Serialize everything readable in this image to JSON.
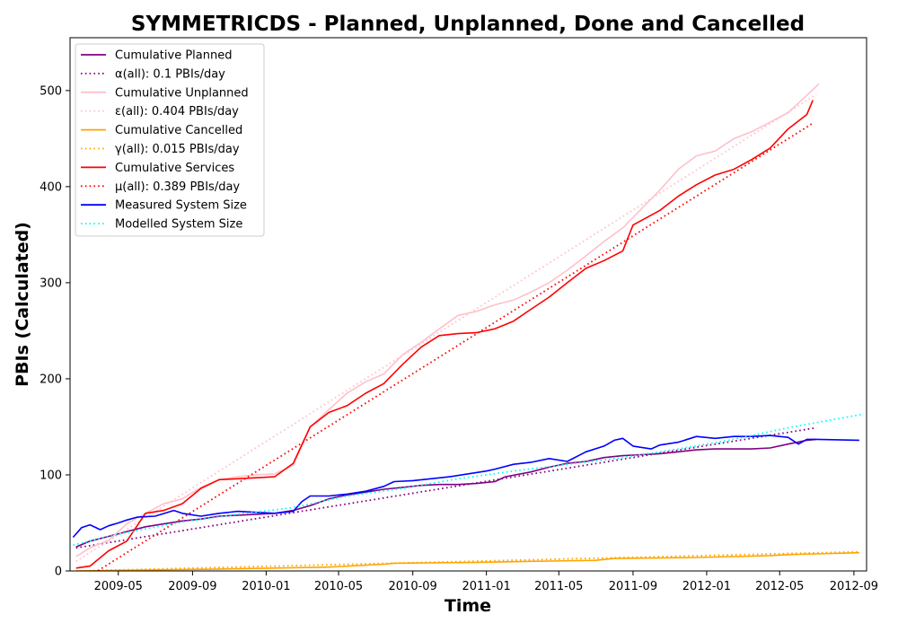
{
  "chart_data": {
    "type": "line",
    "title": "SYMMETRICDS - Planned, Unplanned, Done  and Cancelled",
    "xlabel": "Time",
    "ylabel": "PBIs (Calculated)",
    "x_ticks": [
      "2009-05",
      "2009-09",
      "2010-01",
      "2010-05",
      "2010-09",
      "2011-01",
      "2011-05",
      "2011-09",
      "2012-01",
      "2012-05",
      "2012-09"
    ],
    "y_ticks": [
      0,
      100,
      200,
      300,
      400,
      500
    ],
    "xlim": [
      "2009-02-10",
      "2012-09-22"
    ],
    "ylim": [
      0,
      555
    ],
    "grid": false,
    "legend_position": "top-left",
    "series": [
      {
        "name": "Cumulative Planned",
        "color": "#800080",
        "style": "solid",
        "points": [
          [
            "2009-02-20",
            25
          ],
          [
            "2009-03-15",
            31
          ],
          [
            "2009-04-15",
            36
          ],
          [
            "2009-05-15",
            41
          ],
          [
            "2009-06-15",
            46
          ],
          [
            "2009-07-15",
            49
          ],
          [
            "2009-08-15",
            52
          ],
          [
            "2009-09-15",
            54
          ],
          [
            "2009-10-15",
            57
          ],
          [
            "2009-11-15",
            58
          ],
          [
            "2009-12-15",
            59
          ],
          [
            "2010-01-15",
            60
          ],
          [
            "2010-02-15",
            63
          ],
          [
            "2010-03-15",
            68
          ],
          [
            "2010-04-15",
            75
          ],
          [
            "2010-05-15",
            79
          ],
          [
            "2010-06-15",
            82
          ],
          [
            "2010-07-15",
            85
          ],
          [
            "2010-08-15",
            87
          ],
          [
            "2010-09-15",
            89
          ],
          [
            "2010-10-15",
            90
          ],
          [
            "2010-11-15",
            90
          ],
          [
            "2010-12-15",
            91
          ],
          [
            "2011-01-15",
            93
          ],
          [
            "2011-02-01",
            98
          ],
          [
            "2011-03-15",
            103
          ],
          [
            "2011-04-15",
            108
          ],
          [
            "2011-05-15",
            112
          ],
          [
            "2011-06-15",
            114
          ],
          [
            "2011-07-15",
            118
          ],
          [
            "2011-08-15",
            120
          ],
          [
            "2011-09-15",
            121
          ],
          [
            "2011-10-15",
            122
          ],
          [
            "2011-11-15",
            124
          ],
          [
            "2011-12-15",
            126
          ],
          [
            "2012-01-15",
            127
          ],
          [
            "2012-02-15",
            127
          ],
          [
            "2012-03-15",
            127
          ],
          [
            "2012-04-15",
            128
          ],
          [
            "2012-05-15",
            132
          ],
          [
            "2012-06-15",
            136
          ],
          [
            "2012-07-01",
            137
          ]
        ]
      },
      {
        "name": "α(all): 0.1 PBIs/day",
        "color": "#800080",
        "style": "dotted",
        "points": [
          [
            "2009-02-20",
            24
          ],
          [
            "2012-07-01",
            149
          ]
        ]
      },
      {
        "name": "Cumulative Unplanned",
        "color": "#ffc0cb",
        "style": "solid",
        "points": [
          [
            "2009-02-20",
            15
          ],
          [
            "2009-03-15",
            24
          ],
          [
            "2009-04-15",
            32
          ],
          [
            "2009-05-15",
            49
          ],
          [
            "2009-06-15",
            60
          ],
          [
            "2009-07-15",
            70
          ],
          [
            "2009-08-15",
            75
          ],
          [
            "2009-09-15",
            87
          ],
          [
            "2009-10-15",
            95
          ],
          [
            "2009-11-15",
            98
          ],
          [
            "2009-12-15",
            100
          ],
          [
            "2010-01-15",
            101
          ],
          [
            "2010-02-15",
            110
          ],
          [
            "2010-03-15",
            150
          ],
          [
            "2010-04-15",
            168
          ],
          [
            "2010-05-15",
            185
          ],
          [
            "2010-06-15",
            197
          ],
          [
            "2010-07-15",
            205
          ],
          [
            "2010-08-15",
            225
          ],
          [
            "2010-09-15",
            238
          ],
          [
            "2010-10-15",
            252
          ],
          [
            "2010-11-15",
            266
          ],
          [
            "2010-12-15",
            270
          ],
          [
            "2011-01-15",
            277
          ],
          [
            "2011-02-15",
            282
          ],
          [
            "2011-03-15",
            290
          ],
          [
            "2011-04-15",
            300
          ],
          [
            "2011-05-15",
            313
          ],
          [
            "2011-06-15",
            328
          ],
          [
            "2011-07-15",
            343
          ],
          [
            "2011-08-15",
            357
          ],
          [
            "2011-09-15",
            377
          ],
          [
            "2011-10-15",
            396
          ],
          [
            "2011-11-15",
            418
          ],
          [
            "2011-12-15",
            432
          ],
          [
            "2012-01-15",
            437
          ],
          [
            "2012-02-15",
            450
          ],
          [
            "2012-03-15",
            457
          ],
          [
            "2012-04-15",
            467
          ],
          [
            "2012-05-15",
            477
          ],
          [
            "2012-06-15",
            495
          ],
          [
            "2012-07-05",
            507
          ]
        ]
      },
      {
        "name": "ε(all): 0.404 PBIs/day",
        "color": "#ffc0cb",
        "style": "dotted",
        "points": [
          [
            "2009-02-20",
            10
          ],
          [
            "2012-07-01",
            496
          ]
        ]
      },
      {
        "name": "Cumulative Cancelled",
        "color": "#ffa500",
        "style": "solid",
        "points": [
          [
            "2009-02-20",
            0
          ],
          [
            "2009-06-15",
            1
          ],
          [
            "2009-10-15",
            2
          ],
          [
            "2010-01-15",
            3
          ],
          [
            "2010-04-15",
            4
          ],
          [
            "2010-07-15",
            7
          ],
          [
            "2010-08-01",
            8
          ],
          [
            "2010-12-15",
            9
          ],
          [
            "2011-03-15",
            10
          ],
          [
            "2011-07-01",
            11
          ],
          [
            "2011-08-01",
            13
          ],
          [
            "2011-12-15",
            14
          ],
          [
            "2012-04-15",
            16
          ],
          [
            "2012-05-15",
            17
          ],
          [
            "2012-09-10",
            19
          ]
        ]
      },
      {
        "name": "γ(all): 0.015 PBIs/day",
        "color": "#ffa500",
        "style": "dotted",
        "points": [
          [
            "2009-02-20",
            0
          ],
          [
            "2012-09-10",
            20
          ]
        ]
      },
      {
        "name": "Cumulative Services",
        "color": "#ff0000",
        "style": "solid",
        "points": [
          [
            "2009-02-20",
            3
          ],
          [
            "2009-03-15",
            5
          ],
          [
            "2009-04-15",
            21
          ],
          [
            "2009-05-15",
            31
          ],
          [
            "2009-06-15",
            60
          ],
          [
            "2009-07-15",
            63
          ],
          [
            "2009-08-15",
            70
          ],
          [
            "2009-09-15",
            86
          ],
          [
            "2009-10-15",
            95
          ],
          [
            "2009-11-15",
            96
          ],
          [
            "2009-12-15",
            97
          ],
          [
            "2010-01-15",
            98
          ],
          [
            "2010-02-15",
            112
          ],
          [
            "2010-03-15",
            150
          ],
          [
            "2010-04-15",
            165
          ],
          [
            "2010-05-15",
            172
          ],
          [
            "2010-06-15",
            185
          ],
          [
            "2010-07-15",
            195
          ],
          [
            "2010-08-15",
            215
          ],
          [
            "2010-09-15",
            233
          ],
          [
            "2010-10-15",
            245
          ],
          [
            "2010-11-15",
            247
          ],
          [
            "2010-12-15",
            248
          ],
          [
            "2011-01-15",
            252
          ],
          [
            "2011-02-15",
            260
          ],
          [
            "2011-03-15",
            272
          ],
          [
            "2011-04-15",
            285
          ],
          [
            "2011-05-15",
            300
          ],
          [
            "2011-06-15",
            315
          ],
          [
            "2011-07-15",
            323
          ],
          [
            "2011-08-15",
            333
          ],
          [
            "2011-09-01",
            360
          ],
          [
            "2011-10-15",
            375
          ],
          [
            "2011-11-15",
            390
          ],
          [
            "2011-12-15",
            402
          ],
          [
            "2012-01-15",
            412
          ],
          [
            "2012-02-15",
            418
          ],
          [
            "2012-03-15",
            428
          ],
          [
            "2012-04-15",
            440
          ],
          [
            "2012-05-15",
            460
          ],
          [
            "2012-06-15",
            475
          ],
          [
            "2012-06-25",
            490
          ]
        ]
      },
      {
        "name": "μ(all): 0.389 PBIs/day",
        "color": "#ff0000",
        "style": "dotted",
        "points": [
          [
            "2009-02-20",
            -14
          ],
          [
            "2012-06-25",
            466
          ]
        ]
      },
      {
        "name": "Measured System Size",
        "color": "#0000ff",
        "style": "solid",
        "points": [
          [
            "2009-02-15",
            35
          ],
          [
            "2009-03-01",
            45
          ],
          [
            "2009-03-15",
            48
          ],
          [
            "2009-04-01",
            43
          ],
          [
            "2009-04-15",
            47
          ],
          [
            "2009-05-01",
            50
          ],
          [
            "2009-05-15",
            53
          ],
          [
            "2009-06-01",
            56
          ],
          [
            "2009-07-01",
            57
          ],
          [
            "2009-08-01",
            63
          ],
          [
            "2009-08-15",
            60
          ],
          [
            "2009-09-15",
            57
          ],
          [
            "2009-10-15",
            60
          ],
          [
            "2009-11-15",
            62
          ],
          [
            "2009-12-15",
            61
          ],
          [
            "2010-01-15",
            60
          ],
          [
            "2010-02-15",
            62
          ],
          [
            "2010-03-01",
            72
          ],
          [
            "2010-03-15",
            78
          ],
          [
            "2010-04-15",
            78
          ],
          [
            "2010-05-15",
            80
          ],
          [
            "2010-06-15",
            83
          ],
          [
            "2010-07-15",
            88
          ],
          [
            "2010-08-01",
            93
          ],
          [
            "2010-09-01",
            94
          ],
          [
            "2010-10-01",
            96
          ],
          [
            "2010-11-01",
            98
          ],
          [
            "2010-12-01",
            101
          ],
          [
            "2011-01-01",
            104
          ],
          [
            "2011-01-15",
            106
          ],
          [
            "2011-02-15",
            111
          ],
          [
            "2011-03-15",
            113
          ],
          [
            "2011-04-15",
            117
          ],
          [
            "2011-05-15",
            114
          ],
          [
            "2011-06-15",
            124
          ],
          [
            "2011-07-15",
            130
          ],
          [
            "2011-08-01",
            136
          ],
          [
            "2011-08-15",
            138
          ],
          [
            "2011-09-01",
            130
          ],
          [
            "2011-10-01",
            127
          ],
          [
            "2011-10-15",
            131
          ],
          [
            "2011-11-15",
            134
          ],
          [
            "2011-12-15",
            140
          ],
          [
            "2012-01-15",
            138
          ],
          [
            "2012-02-15",
            140
          ],
          [
            "2012-03-15",
            140
          ],
          [
            "2012-04-15",
            141
          ],
          [
            "2012-05-15",
            139
          ],
          [
            "2012-06-01",
            132
          ],
          [
            "2012-06-15",
            137
          ],
          [
            "2012-07-01",
            137
          ],
          [
            "2012-09-10",
            136
          ]
        ]
      },
      {
        "name": "Modelled System Size",
        "color": "#00ffff",
        "style": "dotted",
        "points": [
          [
            "2009-02-15",
            27
          ],
          [
            "2009-05-15",
            40
          ],
          [
            "2009-08-15",
            51
          ],
          [
            "2009-11-15",
            59
          ],
          [
            "2010-02-15",
            66
          ],
          [
            "2010-05-15",
            78
          ],
          [
            "2010-08-15",
            86
          ],
          [
            "2010-11-15",
            96
          ],
          [
            "2011-02-15",
            104
          ],
          [
            "2011-05-15",
            111
          ],
          [
            "2011-08-15",
            118
          ],
          [
            "2011-11-15",
            127
          ],
          [
            "2012-02-15",
            137
          ],
          [
            "2012-05-15",
            149
          ],
          [
            "2012-09-15",
            163
          ]
        ]
      }
    ]
  }
}
